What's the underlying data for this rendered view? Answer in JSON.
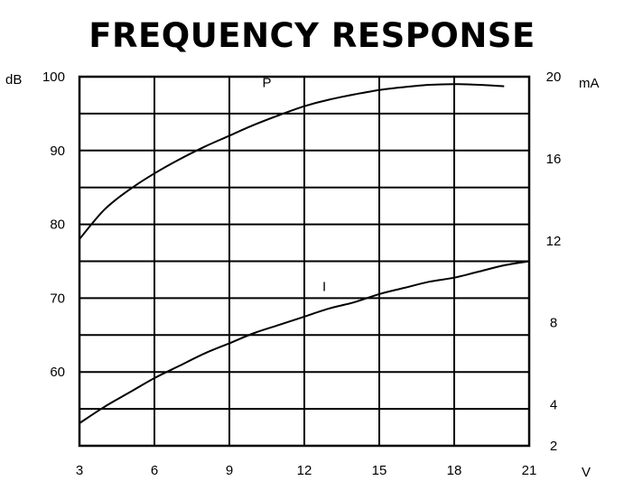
{
  "chart_data": {
    "type": "line",
    "title": "FREQUENCY RESPONSE",
    "x_unit": "V",
    "y_left_unit": "dB",
    "y_right_unit": "mA",
    "xlim": [
      3,
      21
    ],
    "x_ticks": [
      3,
      6,
      9,
      12,
      15,
      18,
      21
    ],
    "y_left_lim": [
      50,
      100
    ],
    "y_left_ticks": [
      60,
      70,
      80,
      90,
      100
    ],
    "y_right_lim": [
      2,
      20
    ],
    "y_right_ticks": [
      2,
      4,
      8,
      12,
      16,
      20
    ],
    "grid": true,
    "series": [
      {
        "name": "P",
        "axis": "left",
        "x": [
          3,
          4,
          5,
          6,
          7,
          8,
          9,
          10,
          11,
          12,
          13,
          14,
          15,
          16,
          17,
          18,
          19,
          20
        ],
        "y": [
          78,
          82,
          84.7,
          86.9,
          88.8,
          90.5,
          92,
          93.5,
          94.8,
          96,
          96.9,
          97.6,
          98.2,
          98.6,
          98.9,
          99,
          98.9,
          98.7
        ]
      },
      {
        "name": "I",
        "axis": "right",
        "x": [
          3,
          4,
          5,
          6,
          7,
          8,
          9,
          10,
          11,
          12,
          13,
          14,
          15,
          16,
          17,
          18,
          19,
          20,
          21
        ],
        "y": [
          3.1,
          3.9,
          4.6,
          5.3,
          5.9,
          6.5,
          7,
          7.5,
          7.9,
          8.3,
          8.7,
          9,
          9.4,
          9.7,
          10,
          10.2,
          10.5,
          10.8,
          11
        ]
      }
    ]
  }
}
